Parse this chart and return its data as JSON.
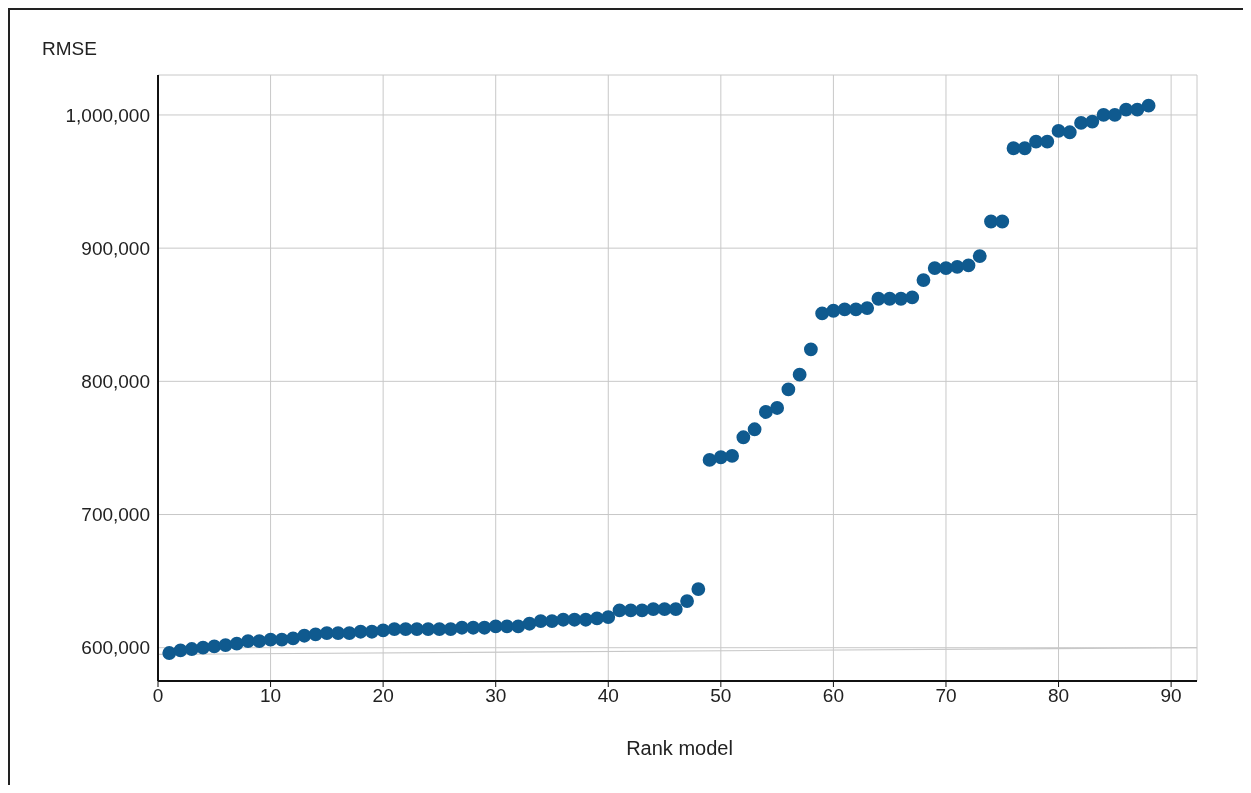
{
  "chart_data": {
    "type": "scatter",
    "xlabel": "Rank model",
    "ylabel": "RMSE",
    "x": [
      1,
      2,
      3,
      4,
      5,
      6,
      7,
      8,
      9,
      10,
      11,
      12,
      13,
      14,
      15,
      16,
      17,
      18,
      19,
      20,
      21,
      22,
      23,
      24,
      25,
      26,
      27,
      28,
      29,
      30,
      31,
      32,
      33,
      34,
      35,
      36,
      37,
      38,
      39,
      40,
      41,
      42,
      43,
      44,
      45,
      46,
      47,
      48,
      49,
      50,
      51,
      52,
      53,
      54,
      55,
      56,
      57,
      58,
      59,
      60,
      61,
      62,
      63,
      64,
      65,
      66,
      67,
      68,
      69,
      70,
      71,
      72,
      73,
      74,
      75,
      76,
      77,
      78,
      79,
      80,
      81,
      82,
      83,
      84,
      85,
      86,
      87,
      88
    ],
    "series": [
      {
        "color": "#0f5a8f",
        "values": [
          596000,
          598000,
          599000,
          600000,
          601000,
          602000,
          603000,
          605000,
          605000,
          606000,
          606000,
          607000,
          609000,
          610000,
          611000,
          611000,
          611000,
          612000,
          612000,
          613000,
          614000,
          614000,
          614000,
          614000,
          614000,
          614000,
          615000,
          615000,
          615000,
          616000,
          616000,
          616000,
          618000,
          620000,
          620000,
          621000,
          621000,
          621000,
          622000,
          623000,
          628000,
          628000,
          628000,
          629000,
          629000,
          629000,
          635000,
          644000,
          741000,
          743000,
          744000,
          758000,
          764000,
          777000,
          780000,
          794000,
          805000,
          824000,
          851000,
          853000,
          854000,
          854000,
          855000,
          862000,
          862000,
          862000,
          863000,
          876000,
          885000,
          885000,
          886000,
          887000,
          894000,
          920000,
          920000,
          975000,
          975000,
          980000,
          980000,
          988000,
          987000,
          994000,
          995000,
          1000000,
          1000000,
          1004000,
          1004000,
          1007000
        ]
      },
      {
        "type": "line",
        "marker": "none",
        "color": "#c8c8c8",
        "x": [
          0,
          92.3
        ],
        "values": [
          595000,
          600000
        ]
      }
    ],
    "xlim": [
      0,
      92.3
    ],
    "xticks": [
      0,
      10,
      20,
      30,
      40,
      50,
      60,
      70,
      80,
      90
    ],
    "ylim": [
      575000,
      1030000
    ],
    "yticks": [
      {
        "value": 600000,
        "label": "600,000"
      },
      {
        "value": 700000,
        "label": "700,000"
      },
      {
        "value": 800000,
        "label": "800,000"
      },
      {
        "value": 900000,
        "label": "900,000"
      },
      {
        "value": 1000000,
        "label": "1,000,000"
      }
    ],
    "grid": true,
    "marker": "circle"
  }
}
